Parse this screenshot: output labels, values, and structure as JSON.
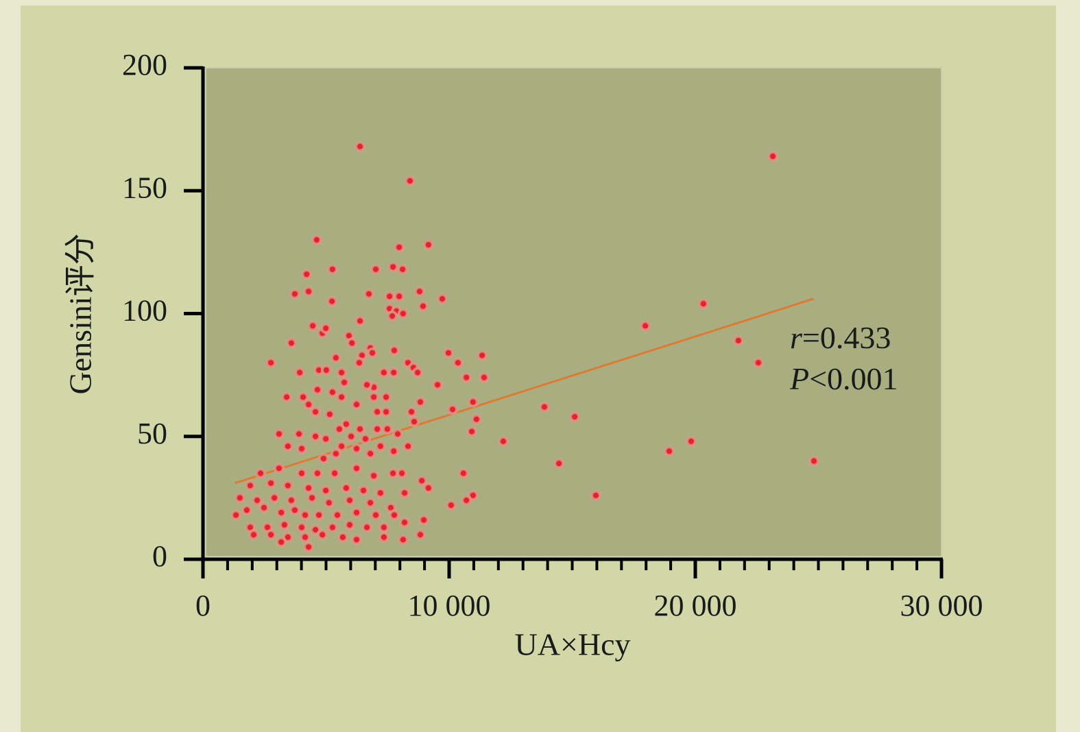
{
  "chart_data": {
    "type": "scatter",
    "x_label": "UA×Hcy",
    "y_label": "Gensini评分",
    "color": "#e8202a",
    "halo_color": "#d99a8a",
    "xlim": [
      0,
      30000
    ],
    "ylim": [
      0,
      200
    ],
    "xticks": [
      0,
      {
        "value": 10000,
        "label": "10 000"
      },
      {
        "value": 20000,
        "label": "20 000"
      },
      {
        "value": 30000,
        "label": "30 000"
      }
    ],
    "xminorticks": [
      1000,
      2000,
      3000,
      4000,
      5000,
      6000,
      7000,
      8000,
      9000,
      11000,
      12000,
      13000,
      14000,
      15000,
      16000,
      17000,
      18000,
      19000,
      21000,
      22000,
      23000,
      24000,
      25000,
      26000,
      27000,
      28000,
      29000
    ],
    "yticks": [
      0,
      50,
      100,
      150,
      200
    ],
    "trendline": {
      "x": [
        1300,
        24800
      ],
      "y": [
        31,
        106
      ],
      "color": "#e07a30"
    },
    "annotations": [
      [
        "r",
        "=0.433"
      ],
      [
        "P",
        "<0.001"
      ]
    ],
    "x": [
      6380,
      8410,
      23150,
      4620,
      9160,
      7970,
      20330,
      17970,
      21750,
      22560,
      13870,
      15100,
      19830,
      18940,
      24820,
      14460,
      15960,
      12200,
      9970,
      11340,
      10970,
      11110,
      10920,
      10580,
      10970,
      10700,
      10080,
      10700,
      11420,
      10360,
      10140,
      8830,
      9530,
      9720,
      8940,
      8800,
      5260,
      7020,
      7720,
      8110,
      4210,
      4290,
      3730,
      5240,
      6740,
      7580,
      7970,
      7580,
      7860,
      8130,
      7690,
      6380,
      4460,
      4850,
      4990,
      5930,
      6800,
      2760,
      3590,
      6460,
      6880,
      8330,
      8550,
      8720,
      7750,
      6350,
      5400,
      3930,
      4710,
      5010,
      5740,
      6940,
      5260,
      4650,
      6940,
      7440,
      3400,
      4070,
      4290,
      5630,
      6240,
      4570,
      5150,
      7080,
      7440,
      8580,
      5820,
      6380,
      5540,
      3090,
      3900,
      4990,
      4570,
      6020,
      6600,
      7080,
      7490,
      7910,
      3450,
      4010,
      5630,
      6240,
      7210,
      7750,
      4900,
      5400,
      6800,
      8080,
      8890,
      7720,
      2340,
      3090,
      4010,
      4650,
      5350,
      6240,
      6940,
      1920,
      2760,
      3450,
      4290,
      4990,
      5820,
      6520,
      7210,
      8190,
      9160,
      1500,
      2200,
      2900,
      3590,
      4430,
      5120,
      5960,
      6800,
      7630,
      1780,
      2480,
      3180,
      3730,
      4150,
      4710,
      5460,
      6240,
      7020,
      7770,
      1340,
      1920,
      2620,
      3310,
      4010,
      4570,
      5260,
      5960,
      6660,
      7350,
      8190,
      8970,
      2060,
      2760,
      3450,
      4150,
      4850,
      5680,
      6240,
      7350,
      8130,
      8830,
      3180,
      4290,
      8330,
      8470,
      6660,
      7350,
      5630,
      6050,
      7770
    ],
    "values": [
      168,
      154,
      164,
      130,
      128,
      127,
      104,
      95,
      89,
      80,
      62,
      58,
      48,
      44,
      40,
      39,
      26,
      48,
      84,
      83,
      64,
      57,
      52,
      35,
      26,
      24,
      22,
      74,
      74,
      80,
      61,
      64,
      71,
      106,
      103,
      109,
      118,
      118,
      119,
      118,
      116,
      109,
      108,
      105,
      108,
      107,
      107,
      102,
      101,
      100,
      99,
      97,
      95,
      92,
      94,
      91,
      86,
      80,
      88,
      83,
      84,
      80,
      78,
      76,
      76,
      80,
      82,
      76,
      77,
      77,
      72,
      70,
      68,
      69,
      66,
      66,
      66,
      66,
      63,
      66,
      63,
      60,
      59,
      60,
      60,
      56,
      55,
      53,
      53,
      51,
      51,
      49,
      50,
      50,
      49,
      53,
      53,
      51,
      46,
      45,
      46,
      45,
      46,
      44,
      41,
      43,
      43,
      35,
      32,
      35,
      35,
      37,
      35,
      35,
      35,
      37,
      34,
      30,
      31,
      30,
      29,
      28,
      29,
      28,
      27,
      27,
      29,
      25,
      24,
      25,
      24,
      25,
      23,
      24,
      23,
      21,
      20,
      21,
      19,
      20,
      18,
      18,
      18,
      19,
      18,
      18,
      18,
      13,
      13,
      14,
      13,
      12,
      13,
      14,
      13,
      13,
      15,
      16,
      10,
      10,
      9,
      9,
      10,
      9,
      8,
      9,
      8,
      10,
      7,
      5,
      46,
      60,
      71,
      76,
      76,
      88,
      85
    ]
  }
}
